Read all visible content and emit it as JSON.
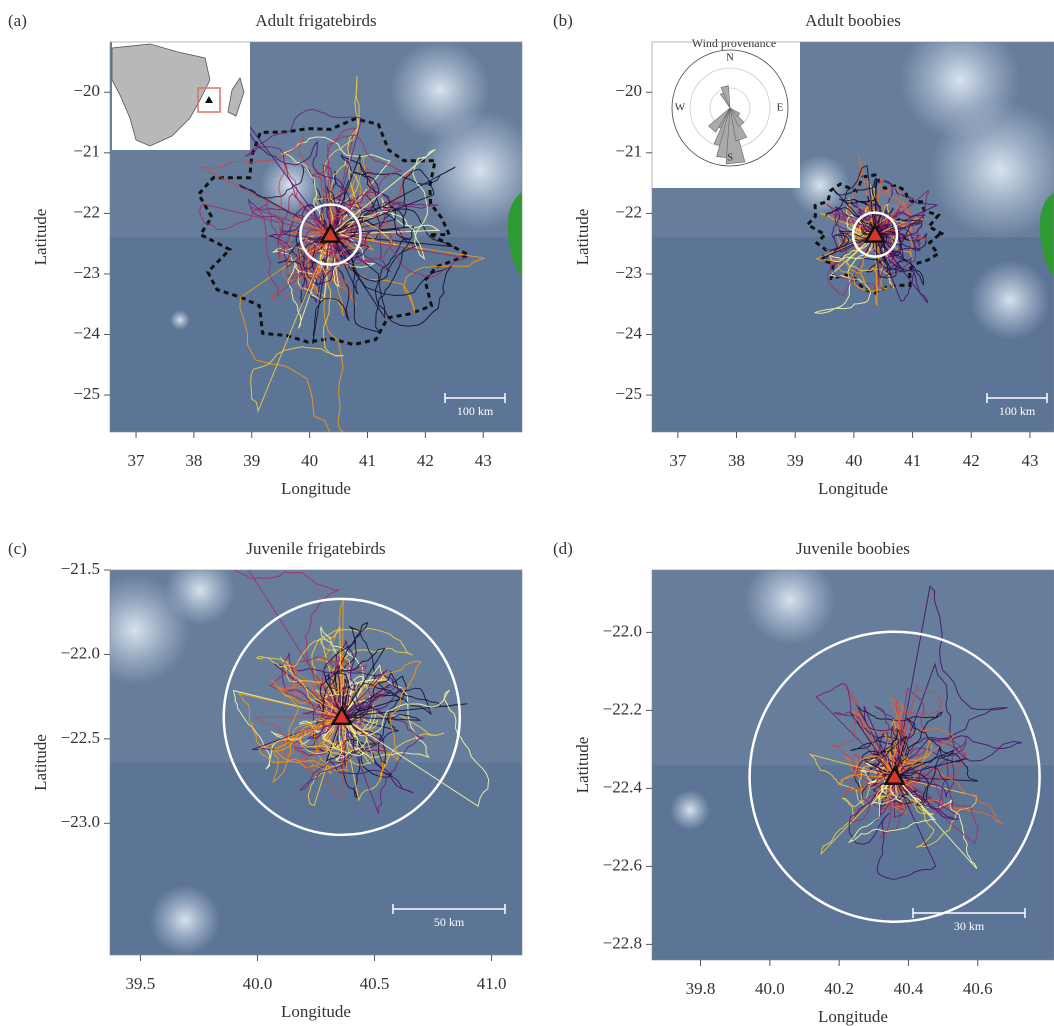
{
  "chart_data": [
    {
      "type": "map",
      "panel": "(a)",
      "title": "Adult frigatebirds",
      "xlabel": "Longitude",
      "ylabel": "Latitude",
      "xlim": [
        36.55,
        43.67
      ],
      "ylim": [
        -25.61,
        -19.17
      ],
      "xticks": [
        37,
        38,
        39,
        40,
        41,
        42,
        43
      ],
      "yticks": [
        {
          "value": -20,
          "label": "−20"
        },
        {
          "value": -21,
          "label": "−21"
        },
        {
          "value": -22,
          "label": "−22"
        },
        {
          "value": -23,
          "label": "−23"
        },
        {
          "value": -24,
          "label": "−24"
        },
        {
          "value": -25,
          "label": "−25"
        }
      ],
      "scale_label": "100 km",
      "colony": {
        "x": 40.36,
        "y": -22.35
      }
    },
    {
      "type": "map",
      "panel": "(b)",
      "title": "Adult boobies",
      "xlabel": "Longitude",
      "ylabel": "Latitude",
      "xlim": [
        36.56,
        43.41
      ],
      "ylim": [
        -25.61,
        -19.17
      ],
      "xticks": [
        37,
        38,
        39,
        40,
        41,
        42,
        43
      ],
      "yticks": [
        {
          "value": -20,
          "label": "−20"
        },
        {
          "value": -21,
          "label": "−21"
        },
        {
          "value": -22,
          "label": "−22"
        },
        {
          "value": -23,
          "label": "−23"
        },
        {
          "value": -24,
          "label": "−24"
        },
        {
          "value": -25,
          "label": "−25"
        }
      ],
      "scale_label": "100 km",
      "colony": {
        "x": 40.36,
        "y": -22.35
      },
      "inset": {
        "title": "Wind provenance",
        "labels": [
          "N",
          "E",
          "S",
          "W"
        ]
      }
    },
    {
      "type": "map",
      "panel": "(c)",
      "title": "Juvenile frigatebirds",
      "xlabel": "Longitude",
      "ylabel": "Latitude",
      "xlim": [
        39.37,
        41.13
      ],
      "ylim": [
        -23.78,
        -21.5
      ],
      "xticks": [
        39.5,
        {
          "value": 40,
          "label": "40.0"
        },
        40.5,
        {
          "value": 41,
          "label": "41.0"
        }
      ],
      "yticks": [
        {
          "value": -21.5,
          "label": "−21.5"
        },
        {
          "value": -22,
          "label": "−22.0"
        },
        {
          "value": -22.5,
          "label": "−22.5"
        },
        {
          "value": -23,
          "label": "−23.0"
        }
      ],
      "scale_label": "50 km",
      "colony": {
        "x": 40.36,
        "y": -22.37
      }
    },
    {
      "type": "map",
      "panel": "(d)",
      "title": "Juvenile boobies",
      "xlabel": "Longitude",
      "ylabel": "Latitude",
      "xlim": [
        39.66,
        40.82
      ],
      "ylim": [
        -22.84,
        -21.84
      ],
      "xticks": [
        39.8,
        {
          "value": 40,
          "label": "40.0"
        },
        40.2,
        40.4,
        40.6
      ],
      "yticks": [
        {
          "value": -22,
          "label": "−22.0"
        },
        {
          "value": -22.2,
          "label": "−22.2"
        },
        {
          "value": -22.4,
          "label": "−22.4"
        },
        {
          "value": -22.6,
          "label": "−22.6"
        },
        {
          "value": -22.8,
          "label": "−22.8"
        }
      ],
      "scale_label": "30 km",
      "colony": {
        "x": 40.36,
        "y": -22.37
      }
    }
  ]
}
